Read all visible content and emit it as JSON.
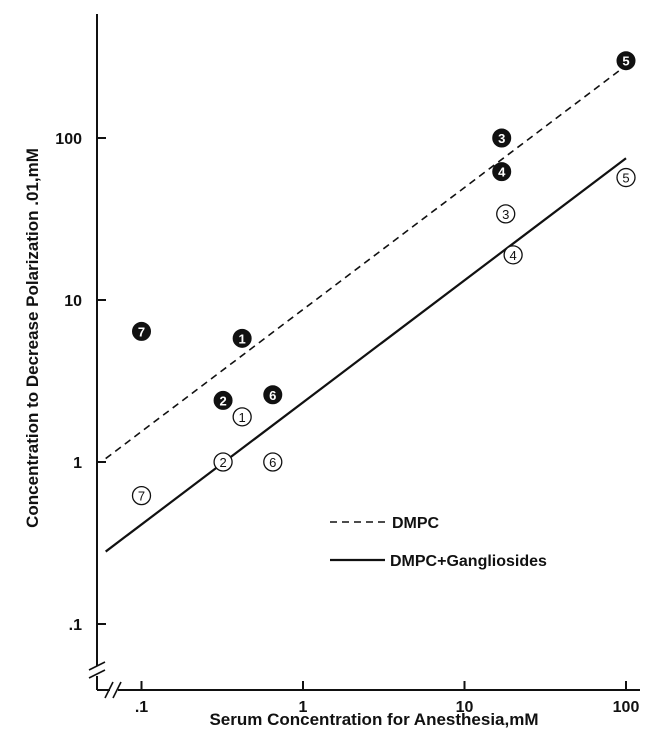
{
  "chart_data": {
    "type": "scatter",
    "title": "",
    "xlabel": "Serum Concentration for Anesthesia,mM",
    "ylabel": "Concentration to Decrease Polarization .01,mM",
    "x_scale": "log",
    "y_scale": "log",
    "xlim": [
      0.06,
      150
    ],
    "ylim": [
      0.06,
      600
    ],
    "x_ticks": [
      {
        "value": 0.1,
        "label": ".1"
      },
      {
        "value": 1,
        "label": "1"
      },
      {
        "value": 10,
        "label": "10"
      },
      {
        "value": 100,
        "label": "100"
      }
    ],
    "y_ticks": [
      {
        "value": 0.1,
        "label": ".1"
      },
      {
        "value": 1,
        "label": "1"
      },
      {
        "value": 10,
        "label": "10"
      },
      {
        "value": 100,
        "label": "100"
      }
    ],
    "grid": false,
    "legend_position": "lower-right",
    "series": [
      {
        "name": "DMPC",
        "marker": "filled-circle-number",
        "line": {
          "style": "dashed",
          "x": [
            0.06,
            100
          ],
          "y": [
            1.05,
            280
          ]
        },
        "points": [
          {
            "label": "1",
            "x": 0.42,
            "y": 5.8
          },
          {
            "label": "2",
            "x": 0.32,
            "y": 2.4
          },
          {
            "label": "3",
            "x": 17,
            "y": 100
          },
          {
            "label": "4",
            "x": 17,
            "y": 62
          },
          {
            "label": "5",
            "x": 100,
            "y": 300
          },
          {
            "label": "6",
            "x": 0.65,
            "y": 2.6
          },
          {
            "label": "7",
            "x": 0.1,
            "y": 6.4
          }
        ]
      },
      {
        "name": "DMPC+Gangliosides",
        "marker": "open-circle-number",
        "line": {
          "style": "solid",
          "x": [
            0.06,
            100
          ],
          "y": [
            0.28,
            75
          ]
        },
        "points": [
          {
            "label": "1",
            "x": 0.42,
            "y": 1.9
          },
          {
            "label": "2",
            "x": 0.32,
            "y": 1.0
          },
          {
            "label": "3",
            "x": 18,
            "y": 34
          },
          {
            "label": "4",
            "x": 20,
            "y": 19
          },
          {
            "label": "5",
            "x": 100,
            "y": 57
          },
          {
            "label": "6",
            "x": 0.65,
            "y": 1.0
          },
          {
            "label": "7",
            "x": 0.1,
            "y": 0.62
          }
        ]
      }
    ]
  }
}
